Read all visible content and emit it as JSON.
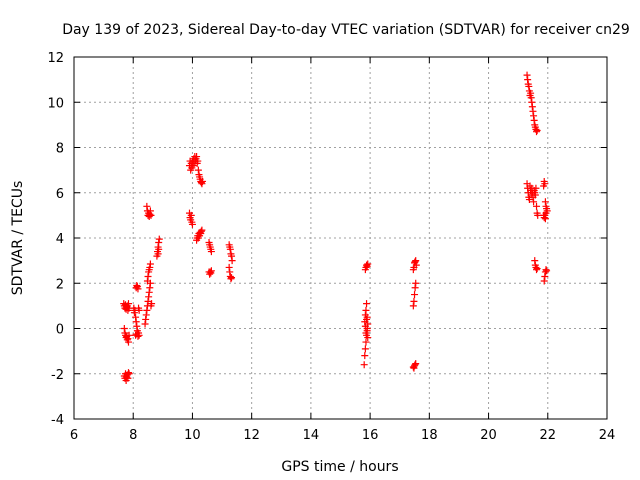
{
  "chart_data": {
    "type": "scatter",
    "title": "Day 139 of 2023, Sidereal Day-to-day VTEC variation (SDTVAR) for receiver cn29",
    "xlabel": "GPS time / hours",
    "ylabel": "SDTVAR / TECUs",
    "xlim": [
      6,
      24
    ],
    "ylim": [
      -4,
      12
    ],
    "xticks": [
      6,
      8,
      10,
      12,
      14,
      16,
      18,
      20,
      22,
      24
    ],
    "yticks": [
      -4,
      -2,
      0,
      2,
      4,
      6,
      8,
      10,
      12
    ],
    "grid": true,
    "marker": "+",
    "marker_color": "#ff0000",
    "series": [
      {
        "name": "SDTVAR",
        "points": [
          [
            7.68,
            1.1
          ],
          [
            7.7,
            1.0
          ],
          [
            7.72,
            0.9
          ],
          [
            7.74,
            1.05
          ],
          [
            7.76,
            0.85
          ],
          [
            7.78,
            0.95
          ],
          [
            7.8,
            1.0
          ],
          [
            7.82,
            0.8
          ],
          [
            7.84,
            1.1
          ],
          [
            7.86,
            0.9
          ],
          [
            7.7,
            0.0
          ],
          [
            7.72,
            -0.2
          ],
          [
            7.74,
            -0.3
          ],
          [
            7.76,
            -0.4
          ],
          [
            7.78,
            -0.35
          ],
          [
            7.8,
            -0.5
          ],
          [
            7.82,
            -0.45
          ],
          [
            7.84,
            -0.6
          ],
          [
            7.86,
            -0.3
          ],
          [
            7.7,
            -2.1
          ],
          [
            7.72,
            -2.2
          ],
          [
            7.74,
            -2.0
          ],
          [
            7.76,
            -2.3
          ],
          [
            7.78,
            -2.15
          ],
          [
            7.8,
            -2.05
          ],
          [
            7.82,
            -2.2
          ],
          [
            7.84,
            -1.95
          ],
          [
            7.86,
            -2.0
          ],
          [
            8.02,
            0.9
          ],
          [
            8.04,
            0.7
          ],
          [
            8.06,
            0.8
          ],
          [
            8.08,
            0.5
          ],
          [
            8.1,
            0.3
          ],
          [
            8.12,
            0.1
          ],
          [
            8.14,
            -0.1
          ],
          [
            8.08,
            -0.3
          ],
          [
            8.1,
            -0.25
          ],
          [
            8.16,
            -0.35
          ],
          [
            8.1,
            1.8
          ],
          [
            8.12,
            1.9
          ],
          [
            8.14,
            1.85
          ],
          [
            8.16,
            1.75
          ],
          [
            8.18,
            0.9
          ],
          [
            8.2,
            0.8
          ],
          [
            8.18,
            -0.2
          ],
          [
            8.2,
            -0.3
          ],
          [
            8.4,
            0.2
          ],
          [
            8.42,
            0.4
          ],
          [
            8.44,
            0.6
          ],
          [
            8.46,
            0.8
          ],
          [
            8.48,
            1.0
          ],
          [
            8.5,
            1.2
          ],
          [
            8.52,
            1.4
          ],
          [
            8.54,
            1.6
          ],
          [
            8.56,
            1.8
          ],
          [
            8.58,
            2.0
          ],
          [
            8.6,
            1.0
          ],
          [
            8.62,
            1.1
          ],
          [
            8.48,
            2.1
          ],
          [
            8.5,
            2.3
          ],
          [
            8.52,
            2.5
          ],
          [
            8.54,
            2.6
          ],
          [
            8.56,
            2.7
          ],
          [
            8.58,
            2.85
          ],
          [
            8.46,
            5.4
          ],
          [
            8.48,
            5.2
          ],
          [
            8.5,
            5.0
          ],
          [
            8.52,
            5.1
          ],
          [
            8.54,
            4.95
          ],
          [
            8.56,
            5.05
          ],
          [
            8.58,
            5.2
          ],
          [
            8.6,
            5.0
          ],
          [
            8.8,
            3.2
          ],
          [
            8.82,
            3.4
          ],
          [
            8.84,
            3.6
          ],
          [
            8.86,
            3.8
          ],
          [
            8.88,
            3.95
          ],
          [
            8.84,
            3.3
          ],
          [
            8.86,
            3.5
          ],
          [
            9.9,
            5.1
          ],
          [
            9.92,
            4.9
          ],
          [
            9.94,
            4.8
          ],
          [
            9.96,
            5.0
          ],
          [
            9.98,
            4.7
          ],
          [
            10.0,
            4.6
          ],
          [
            9.9,
            7.2
          ],
          [
            9.92,
            7.4
          ],
          [
            9.94,
            7.0
          ],
          [
            9.96,
            7.3
          ],
          [
            9.98,
            7.1
          ],
          [
            10.0,
            7.4
          ],
          [
            10.02,
            7.2
          ],
          [
            10.04,
            7.5
          ],
          [
            10.06,
            7.3
          ],
          [
            10.08,
            7.6
          ],
          [
            10.1,
            7.4
          ],
          [
            10.12,
            7.5
          ],
          [
            10.14,
            7.6
          ],
          [
            10.16,
            7.3
          ],
          [
            10.18,
            7.4
          ],
          [
            10.2,
            7.0
          ],
          [
            10.22,
            6.8
          ],
          [
            10.24,
            6.7
          ],
          [
            10.26,
            6.6
          ],
          [
            10.28,
            6.5
          ],
          [
            10.3,
            6.45
          ],
          [
            10.32,
            6.4
          ],
          [
            10.34,
            6.5
          ],
          [
            10.14,
            3.9
          ],
          [
            10.16,
            4.0
          ],
          [
            10.18,
            4.1
          ],
          [
            10.2,
            4.0
          ],
          [
            10.22,
            4.2
          ],
          [
            10.24,
            4.1
          ],
          [
            10.26,
            4.25
          ],
          [
            10.28,
            4.2
          ],
          [
            10.3,
            4.3
          ],
          [
            10.32,
            4.35
          ],
          [
            10.56,
            3.8
          ],
          [
            10.58,
            3.7
          ],
          [
            10.6,
            3.6
          ],
          [
            10.62,
            3.5
          ],
          [
            10.64,
            3.4
          ],
          [
            10.56,
            2.5
          ],
          [
            10.58,
            2.4
          ],
          [
            10.6,
            2.5
          ],
          [
            10.62,
            2.45
          ],
          [
            10.64,
            2.55
          ],
          [
            11.24,
            3.7
          ],
          [
            11.26,
            3.6
          ],
          [
            11.28,
            3.5
          ],
          [
            11.3,
            3.3
          ],
          [
            11.32,
            3.2
          ],
          [
            11.34,
            3.0
          ],
          [
            11.24,
            2.7
          ],
          [
            11.26,
            2.5
          ],
          [
            11.28,
            2.3
          ],
          [
            11.3,
            2.2
          ],
          [
            11.32,
            2.25
          ],
          [
            15.8,
            -1.6
          ],
          [
            15.82,
            -1.2
          ],
          [
            15.84,
            -0.9
          ],
          [
            15.86,
            -0.6
          ],
          [
            15.88,
            -0.3
          ],
          [
            15.9,
            0.0
          ],
          [
            15.82,
            0.3
          ],
          [
            15.84,
            0.6
          ],
          [
            15.86,
            0.8
          ],
          [
            15.88,
            1.1
          ],
          [
            15.9,
            0.5
          ],
          [
            15.92,
            0.2
          ],
          [
            15.84,
            0.1
          ],
          [
            15.86,
            -0.2
          ],
          [
            15.88,
            0.4
          ],
          [
            15.9,
            -0.1
          ],
          [
            15.92,
            -0.4
          ],
          [
            15.84,
            2.6
          ],
          [
            15.86,
            2.7
          ],
          [
            15.88,
            2.8
          ],
          [
            15.9,
            2.75
          ],
          [
            15.92,
            2.85
          ],
          [
            17.46,
            1.0
          ],
          [
            17.48,
            1.2
          ],
          [
            17.5,
            1.5
          ],
          [
            17.52,
            1.8
          ],
          [
            17.54,
            2.0
          ],
          [
            17.46,
            2.6
          ],
          [
            17.48,
            2.7
          ],
          [
            17.5,
            2.9
          ],
          [
            17.52,
            2.95
          ],
          [
            17.54,
            3.0
          ],
          [
            17.56,
            2.8
          ],
          [
            17.46,
            -1.7
          ],
          [
            17.48,
            -1.75
          ],
          [
            17.5,
            -1.65
          ],
          [
            17.52,
            -1.6
          ],
          [
            17.54,
            -1.55
          ],
          [
            21.3,
            11.2
          ],
          [
            21.32,
            11.0
          ],
          [
            21.34,
            10.8
          ],
          [
            21.36,
            10.7
          ],
          [
            21.38,
            10.5
          ],
          [
            21.4,
            10.3
          ],
          [
            21.42,
            10.4
          ],
          [
            21.44,
            10.2
          ],
          [
            21.46,
            10.0
          ],
          [
            21.48,
            9.8
          ],
          [
            21.5,
            9.6
          ],
          [
            21.52,
            9.4
          ],
          [
            21.54,
            9.2
          ],
          [
            21.56,
            9.0
          ],
          [
            21.58,
            8.9
          ],
          [
            21.6,
            8.8
          ],
          [
            21.62,
            8.7
          ],
          [
            21.64,
            8.75
          ],
          [
            21.3,
            6.4
          ],
          [
            21.32,
            6.2
          ],
          [
            21.34,
            6.0
          ],
          [
            21.36,
            5.8
          ],
          [
            21.38,
            5.7
          ],
          [
            21.4,
            6.3
          ],
          [
            21.42,
            6.1
          ],
          [
            21.44,
            5.9
          ],
          [
            21.46,
            6.2
          ],
          [
            21.48,
            6.0
          ],
          [
            21.5,
            5.8
          ],
          [
            21.52,
            5.6
          ],
          [
            21.54,
            6.1
          ],
          [
            21.56,
            6.0
          ],
          [
            21.58,
            5.9
          ],
          [
            21.6,
            6.2
          ],
          [
            21.62,
            5.4
          ],
          [
            21.64,
            5.1
          ],
          [
            21.66,
            5.0
          ],
          [
            21.56,
            3.0
          ],
          [
            21.58,
            2.8
          ],
          [
            21.6,
            2.7
          ],
          [
            21.62,
            2.6
          ],
          [
            21.64,
            2.65
          ],
          [
            21.86,
            6.3
          ],
          [
            21.88,
            6.5
          ],
          [
            21.9,
            6.4
          ],
          [
            21.92,
            5.6
          ],
          [
            21.94,
            5.4
          ],
          [
            21.96,
            5.3
          ],
          [
            21.98,
            5.2
          ],
          [
            21.86,
            5.0
          ],
          [
            21.88,
            4.9
          ],
          [
            21.9,
            5.0
          ],
          [
            21.92,
            4.85
          ],
          [
            21.94,
            5.1
          ],
          [
            21.88,
            2.1
          ],
          [
            21.9,
            2.3
          ],
          [
            21.92,
            2.5
          ],
          [
            21.94,
            2.6
          ],
          [
            21.96,
            2.55
          ]
        ]
      }
    ]
  }
}
